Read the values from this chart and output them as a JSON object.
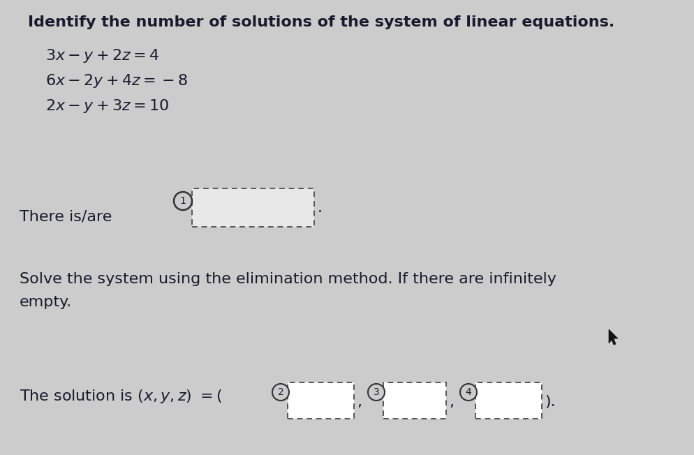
{
  "background_color": "#cccccc",
  "title_text": "Identify the number of solutions of the system of linear equations.",
  "there_is_are_text": "There is/are",
  "solve_text": "Solve the system using the elimination method. If there are infinitely",
  "empty_text": "empty.",
  "solution_pre": "The solution is ",
  "circle1_label": "1",
  "circle2_label": "2",
  "circle3_label": "3",
  "circle4_label": "4",
  "text_color": "#1a1a2e",
  "eq_color": "#1a1a2e",
  "circle_edge_color": "#333333",
  "dashed_color": "#555555",
  "box_fill": "#e8e8e8",
  "title_fontsize": 16,
  "body_fontsize": 16,
  "eq_fontsize": 16
}
